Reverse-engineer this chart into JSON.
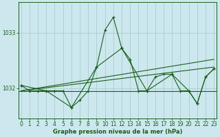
{
  "background_color": "#cce8ee",
  "grid_color": "#aacccc",
  "line_color": "#1a5c1a",
  "xlabel": "Graphe pression niveau de la mer (hPa)",
  "yticks": [
    1032,
    1033
  ],
  "ylim": [
    1031.45,
    1033.55
  ],
  "xlim": [
    -0.3,
    23.3
  ],
  "xticks": [
    0,
    1,
    2,
    3,
    4,
    5,
    6,
    7,
    8,
    9,
    10,
    11,
    12,
    13,
    14,
    15,
    16,
    17,
    18,
    19,
    20,
    21,
    22,
    23
  ],
  "hourly_x": [
    0,
    1,
    2,
    3,
    4,
    5,
    6,
    7,
    8,
    9,
    10,
    11,
    12,
    13,
    14,
    15,
    16,
    17,
    18,
    19,
    20,
    21,
    22,
    23
  ],
  "hourly_y": [
    1032.05,
    1031.95,
    1031.95,
    1031.95,
    1031.95,
    1031.95,
    1031.65,
    1031.78,
    1031.95,
    1032.38,
    1033.05,
    1033.28,
    1032.72,
    1032.52,
    1031.95,
    1031.95,
    1032.2,
    1032.25,
    1032.25,
    1031.95,
    1031.95,
    1031.72,
    1032.2,
    1032.35
  ],
  "flat_y": 1031.95,
  "trend1_x": [
    0,
    23
  ],
  "trend1_y": [
    1031.95,
    1032.52
  ],
  "trend2_x": [
    0,
    23
  ],
  "trend2_y": [
    1031.95,
    1032.38
  ],
  "sparse_x": [
    0,
    3,
    6,
    9,
    12,
    15,
    18,
    20,
    21,
    22,
    23
  ],
  "sparse_y": [
    1032.05,
    1031.95,
    1031.65,
    1032.38,
    1032.72,
    1031.95,
    1032.25,
    1031.95,
    1031.72,
    1032.2,
    1032.35
  ]
}
